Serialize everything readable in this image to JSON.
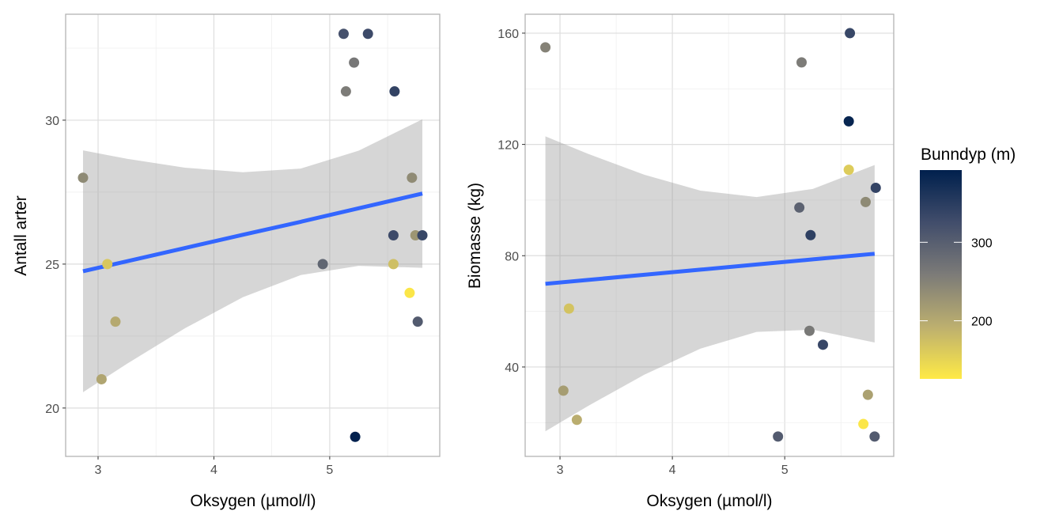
{
  "legend": {
    "title": "Bunndyp (m)",
    "ticks": [
      200,
      300
    ],
    "range": [
      126,
      392
    ],
    "colorscale": [
      "#FFEA46",
      "#BCAF6F",
      "#7C7B78",
      "#414D6B",
      "#00204D"
    ]
  },
  "chart_data": [
    {
      "type": "scatter",
      "xlabel": "Oksygen (µmol/l)",
      "ylabel": "Antall arter",
      "xlim": [
        2.72,
        5.95
      ],
      "ylim": [
        18.32,
        33.68
      ],
      "xticks": [
        3,
        4,
        5
      ],
      "yticks": [
        20,
        25,
        30
      ],
      "grid": true,
      "trend_color": "#3366FF",
      "points": [
        {
          "x": 2.87,
          "y": 28,
          "depth": 240
        },
        {
          "x": 3.08,
          "y": 25,
          "depth": 165
        },
        {
          "x": 3.15,
          "y": 23,
          "depth": 200
        },
        {
          "x": 3.03,
          "y": 21,
          "depth": 205
        },
        {
          "x": 5.12,
          "y": 33,
          "depth": 320
        },
        {
          "x": 5.33,
          "y": 33,
          "depth": 330
        },
        {
          "x": 5.21,
          "y": 32,
          "depth": 265
        },
        {
          "x": 5.14,
          "y": 31,
          "depth": 258
        },
        {
          "x": 5.56,
          "y": 31,
          "depth": 340
        },
        {
          "x": 4.94,
          "y": 25,
          "depth": 290
        },
        {
          "x": 5.55,
          "y": 26,
          "depth": 330
        },
        {
          "x": 5.55,
          "y": 25,
          "depth": 175
        },
        {
          "x": 5.71,
          "y": 28,
          "depth": 238
        },
        {
          "x": 5.74,
          "y": 26,
          "depth": 225
        },
        {
          "x": 5.8,
          "y": 26,
          "depth": 335
        },
        {
          "x": 5.69,
          "y": 24,
          "depth": 130
        },
        {
          "x": 5.76,
          "y": 23,
          "depth": 305
        },
        {
          "x": 5.22,
          "y": 19,
          "depth": 390
        }
      ],
      "trend": {
        "x": [
          2.87,
          3.25,
          3.75,
          4.25,
          4.75,
          5.25,
          5.8
        ],
        "fit": [
          24.75,
          25.1,
          25.56,
          26.02,
          26.47,
          26.94,
          27.45
        ],
        "lower": [
          20.55,
          21.54,
          22.77,
          23.85,
          24.62,
          24.94,
          24.87
        ],
        "upper": [
          28.95,
          28.66,
          28.35,
          28.19,
          28.32,
          28.94,
          30.03
        ]
      }
    },
    {
      "type": "scatter",
      "xlabel": "Oksygen (µmol/l)",
      "ylabel": "Biomasse (kg)",
      "xlim": [
        2.69,
        5.97
      ],
      "ylim": [
        7.86,
        166.8
      ],
      "xticks": [
        3,
        4,
        5
      ],
      "yticks": [
        40,
        80,
        120,
        160
      ],
      "grid": true,
      "trend_color": "#3366FF",
      "points": [
        {
          "x": 2.87,
          "y": 154.9,
          "depth": 250
        },
        {
          "x": 3.08,
          "y": 61,
          "depth": 170
        },
        {
          "x": 3.03,
          "y": 31.5,
          "depth": 215
        },
        {
          "x": 3.15,
          "y": 21,
          "depth": 195
        },
        {
          "x": 5.15,
          "y": 149.5,
          "depth": 258
        },
        {
          "x": 5.58,
          "y": 160,
          "depth": 335
        },
        {
          "x": 5.57,
          "y": 128.3,
          "depth": 385
        },
        {
          "x": 5.57,
          "y": 110.9,
          "depth": 160
        },
        {
          "x": 5.13,
          "y": 97.3,
          "depth": 295
        },
        {
          "x": 5.23,
          "y": 87.4,
          "depth": 345
        },
        {
          "x": 5.81,
          "y": 104.4,
          "depth": 340
        },
        {
          "x": 5.72,
          "y": 99.3,
          "depth": 240
        },
        {
          "x": 5.22,
          "y": 53,
          "depth": 262
        },
        {
          "x": 5.34,
          "y": 48,
          "depth": 335
        },
        {
          "x": 4.94,
          "y": 15,
          "depth": 305
        },
        {
          "x": 5.74,
          "y": 30,
          "depth": 210
        },
        {
          "x": 5.7,
          "y": 19.5,
          "depth": 130
        },
        {
          "x": 5.8,
          "y": 15,
          "depth": 305
        }
      ],
      "trend": {
        "x": [
          2.87,
          3.25,
          3.75,
          4.25,
          4.75,
          5.25,
          5.8
        ],
        "fit": [
          69.9,
          71.3,
          73.15,
          74.99,
          76.84,
          78.68,
          80.7
        ],
        "lower": [
          16.9,
          26.0,
          37.2,
          46.6,
          52.6,
          53.4,
          48.8
        ],
        "upper": [
          122.9,
          116.6,
          109.1,
          103.4,
          101.1,
          104.0,
          112.6
        ]
      }
    }
  ]
}
